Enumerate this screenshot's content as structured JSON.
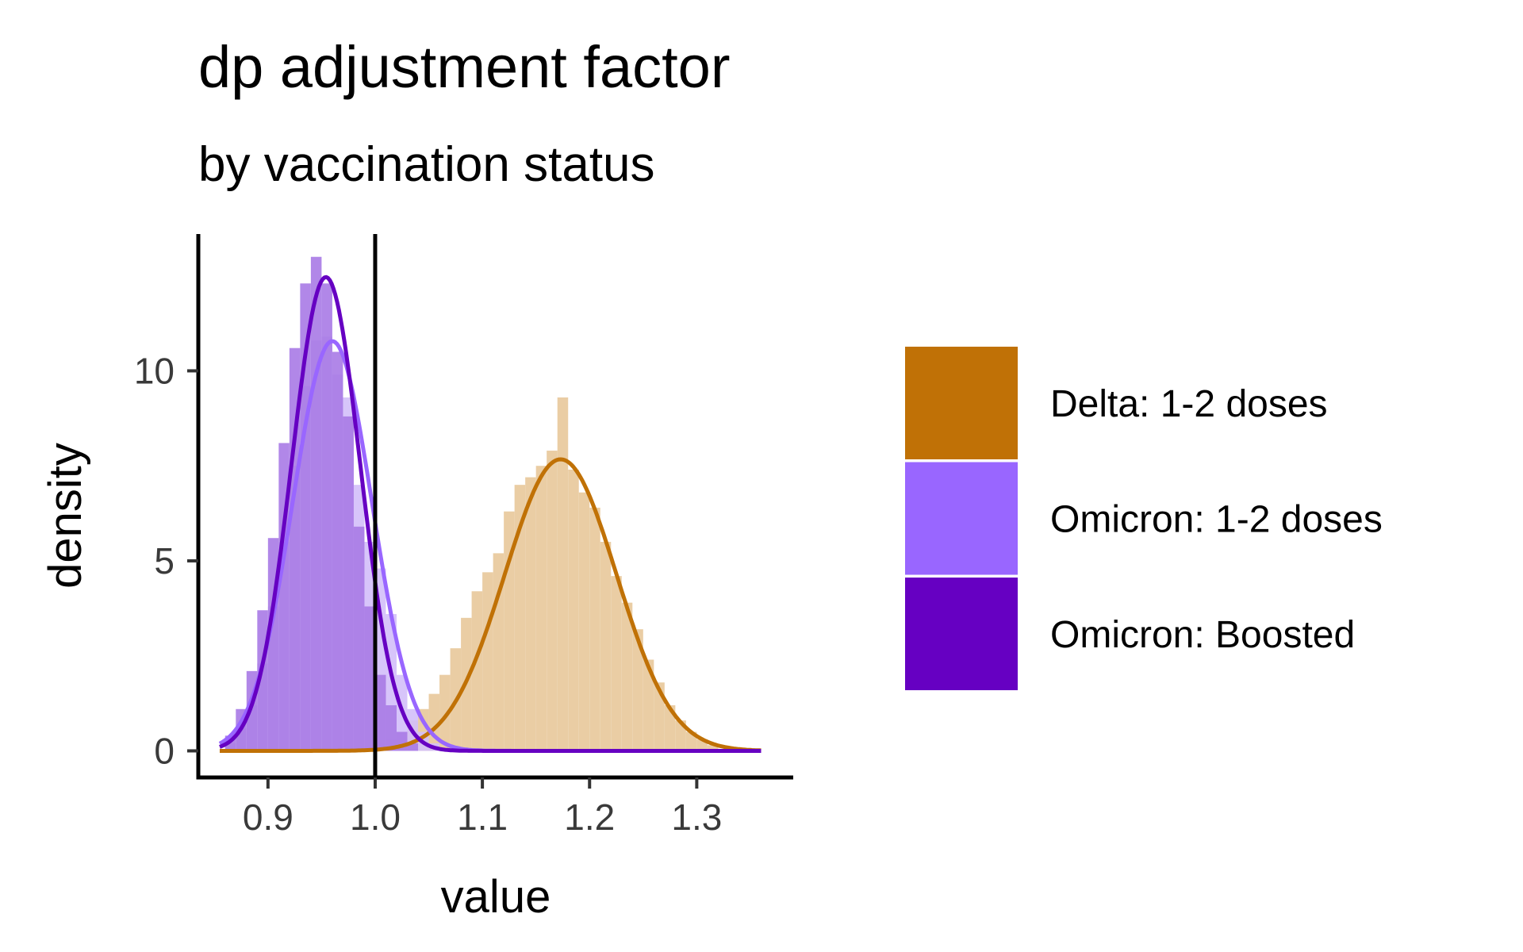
{
  "chart_data": {
    "type": "histogram",
    "title": "dp adjustment factor",
    "subtitle": "by vaccination status",
    "xlabel": "value",
    "ylabel": "density",
    "xlim": [
      0.835,
      1.39
    ],
    "ylim": [
      -0.7,
      13.6
    ],
    "x_ticks": [
      "0.9",
      "1.0",
      "1.1",
      "1.2",
      "1.3"
    ],
    "y_ticks": [
      "0",
      "5",
      "10"
    ],
    "vline_x": 1.0,
    "grid": false,
    "legend_position": "right",
    "series": [
      {
        "name": "Delta: 1-2 doses",
        "color": "#C07106",
        "fill_color": "#E8C89B",
        "density_mean": 1.173,
        "density_sd": 0.052,
        "density_range": [
          0.855,
          1.36
        ],
        "hist_bin_width": 0.01,
        "hist_bins_x": [
          1.005,
          1.015,
          1.025,
          1.035,
          1.045,
          1.055,
          1.065,
          1.075,
          1.085,
          1.095,
          1.105,
          1.115,
          1.125,
          1.135,
          1.145,
          1.155,
          1.165,
          1.175,
          1.185,
          1.195,
          1.205,
          1.215,
          1.225,
          1.235,
          1.245,
          1.255,
          1.265,
          1.275,
          1.285,
          1.295,
          1.305,
          1.315,
          1.325
        ],
        "hist_values": [
          0.2,
          0.3,
          0.5,
          0.8,
          1.1,
          1.5,
          2.0,
          2.7,
          3.5,
          4.2,
          4.7,
          5.2,
          6.3,
          7.0,
          7.2,
          7.5,
          7.9,
          9.3,
          7.4,
          6.8,
          6.4,
          5.5,
          4.6,
          3.9,
          3.2,
          2.4,
          1.8,
          1.2,
          0.8,
          0.5,
          0.3,
          0.15,
          0.05
        ]
      },
      {
        "name": "Omicron: 1-2 doses",
        "color": "#9966FF",
        "fill_color": "#D3BFFA",
        "density_mean": 0.96,
        "density_sd": 0.037,
        "density_range": [
          0.855,
          1.36
        ],
        "hist_bin_width": 0.01,
        "hist_bins_x": [
          0.865,
          0.875,
          0.885,
          0.895,
          0.905,
          0.915,
          0.925,
          0.935,
          0.945,
          0.955,
          0.965,
          0.975,
          0.985,
          0.995,
          1.005,
          1.015,
          1.025,
          1.035,
          1.045,
          1.055
        ],
        "hist_values": [
          0.2,
          0.6,
          1.2,
          2.3,
          3.8,
          5.5,
          7.5,
          9.6,
          10.8,
          10.9,
          9.9,
          9.3,
          7.0,
          5.5,
          4.8,
          3.6,
          2.0,
          1.1,
          0.5,
          0.2
        ]
      },
      {
        "name": "Omicron: Boosted",
        "color": "#6600C2",
        "fill_color": "#A97BE6",
        "density_mean": 0.954,
        "density_sd": 0.032,
        "density_range": [
          0.855,
          1.36
        ],
        "hist_bin_width": 0.01,
        "hist_bins_x": [
          0.865,
          0.875,
          0.885,
          0.895,
          0.905,
          0.915,
          0.925,
          0.935,
          0.945,
          0.955,
          0.965,
          0.975,
          0.985,
          0.995,
          1.005,
          1.015,
          1.025,
          1.035
        ],
        "hist_values": [
          0.4,
          1.1,
          2.1,
          3.7,
          5.6,
          8.1,
          10.6,
          12.3,
          13.0,
          12.3,
          10.5,
          8.8,
          5.9,
          3.8,
          2.0,
          1.2,
          0.5,
          0.2
        ]
      }
    ]
  }
}
